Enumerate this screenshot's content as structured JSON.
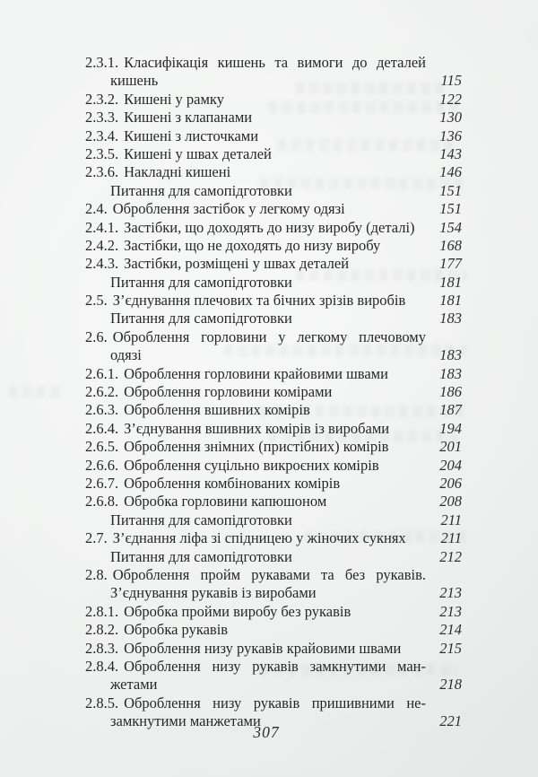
{
  "page": {
    "footer_page_number": "307"
  },
  "toc": {
    "rows": [
      {
        "number": "2.3.1.",
        "text": "Класифікація кишень та вимоги до деталей",
        "page": "",
        "indent": 0,
        "justified": true
      },
      {
        "number": "",
        "text": "кишень",
        "page": "115",
        "indent": 1,
        "justified": false
      },
      {
        "number": "2.3.2.",
        "text": "Кишені у рамку",
        "page": "122",
        "indent": 0,
        "justified": false
      },
      {
        "number": "2.3.3.",
        "text": "Кишені з клапанами",
        "page": "130",
        "indent": 0,
        "justified": false
      },
      {
        "number": "2.3.4.",
        "text": "Кишені з листочками",
        "page": "136",
        "indent": 0,
        "justified": false
      },
      {
        "number": "2.3.5.",
        "text": "Кишені у швах деталей",
        "page": "143",
        "indent": 0,
        "justified": false
      },
      {
        "number": "2.3.6.",
        "text": "Накладні кишені",
        "page": "146",
        "indent": 0,
        "justified": false
      },
      {
        "number": "",
        "text": "Питання для самопідготовки",
        "page": "151",
        "indent": 1,
        "justified": false
      },
      {
        "number": "2.4.",
        "text": "Оброблення застібок у легкому одязі",
        "page": "151",
        "indent": 0,
        "justified": false
      },
      {
        "number": "2.4.1.",
        "text": "Застібки, що доходять до низу виробу (деталі)",
        "page": "154",
        "indent": 0,
        "justified": false
      },
      {
        "number": "2.4.2.",
        "text": "Застібки, що не доходять до низу виробу",
        "page": "168",
        "indent": 0,
        "justified": false
      },
      {
        "number": "2.4.3.",
        "text": "Застібки, розміщені у швах деталей",
        "page": "177",
        "indent": 0,
        "justified": false
      },
      {
        "number": "",
        "text": "Питання для самопідготовки",
        "page": "181",
        "indent": 1,
        "justified": false
      },
      {
        "number": "2.5.",
        "text": "З’єднування плечових та бічних зрізів виробів",
        "page": "181",
        "indent": 0,
        "justified": false
      },
      {
        "number": "",
        "text": "Питання для самопідготовки",
        "page": "183",
        "indent": 1,
        "justified": false
      },
      {
        "number": "2.6.",
        "text": "Оброблення горловини у легкому плечовому",
        "page": "",
        "indent": 0,
        "justified": true
      },
      {
        "number": "",
        "text": "одязі",
        "page": "183",
        "indent": 1,
        "justified": false
      },
      {
        "number": "2.6.1.",
        "text": "Оброблення горловини крайовими швами",
        "page": "183",
        "indent": 0,
        "justified": false
      },
      {
        "number": "2.6.2.",
        "text": "Оброблення горловини комірами",
        "page": "186",
        "indent": 0,
        "justified": false
      },
      {
        "number": "2.6.3.",
        "text": "Оброблення вшивних комірів",
        "page": "187",
        "indent": 0,
        "justified": false
      },
      {
        "number": "2.6.4.",
        "text": "З’єднування вшивних комірів із виробами",
        "page": "194",
        "indent": 0,
        "justified": false
      },
      {
        "number": "2.6.5.",
        "text": "Оброблення знімних (пристібних) комірів",
        "page": "201",
        "indent": 0,
        "justified": false
      },
      {
        "number": "2.6.6.",
        "text": "Оброблення суцільно викроєних комірів",
        "page": "204",
        "indent": 0,
        "justified": false
      },
      {
        "number": "2.6.7.",
        "text": "Оброблення комбінованих комірів",
        "page": "206",
        "indent": 0,
        "justified": false
      },
      {
        "number": "2.6.8.",
        "text": "Обробка горловини капюшоном",
        "page": "208",
        "indent": 0,
        "justified": false
      },
      {
        "number": "",
        "text": "Питання для самопідготовки",
        "page": "211",
        "indent": 1,
        "justified": false
      },
      {
        "number": "2.7.",
        "text": "З’єднання ліфа зі спідницею у жіночих сукнях",
        "page": "211",
        "indent": 0,
        "justified": false
      },
      {
        "number": "",
        "text": "Питання для самопідготовки",
        "page": "212",
        "indent": 1,
        "justified": false
      },
      {
        "number": "2.8.",
        "text": "Оброблення пройм рукавами та без рукавів.",
        "page": "",
        "indent": 0,
        "justified": true
      },
      {
        "number": "",
        "text": "З’єднування рукавів із виробами",
        "page": "213",
        "indent": 1,
        "justified": false
      },
      {
        "number": "2.8.1.",
        "text": "Обробка пройми виробу без рукавів",
        "page": "213",
        "indent": 0,
        "justified": false
      },
      {
        "number": "2.8.2.",
        "text": "Обробка рукавів",
        "page": "214",
        "indent": 0,
        "justified": false
      },
      {
        "number": "2.8.3.",
        "text": "Оброблення низу рукавів крайовими швами",
        "page": "215",
        "indent": 0,
        "justified": false
      },
      {
        "number": "2.8.4.",
        "text": "Оброблення низу рукавів замкнутими ман-",
        "page": "",
        "indent": 0,
        "justified": true
      },
      {
        "number": "",
        "text": "жетами",
        "page": "218",
        "indent": 1,
        "justified": false
      },
      {
        "number": "2.8.5.",
        "text": "Оброблення низу рукавів пришивними не-",
        "page": "",
        "indent": 0,
        "justified": true
      },
      {
        "number": "",
        "text": "замкнутими манжетами",
        "page": "221",
        "indent": 1,
        "justified": false
      }
    ]
  }
}
